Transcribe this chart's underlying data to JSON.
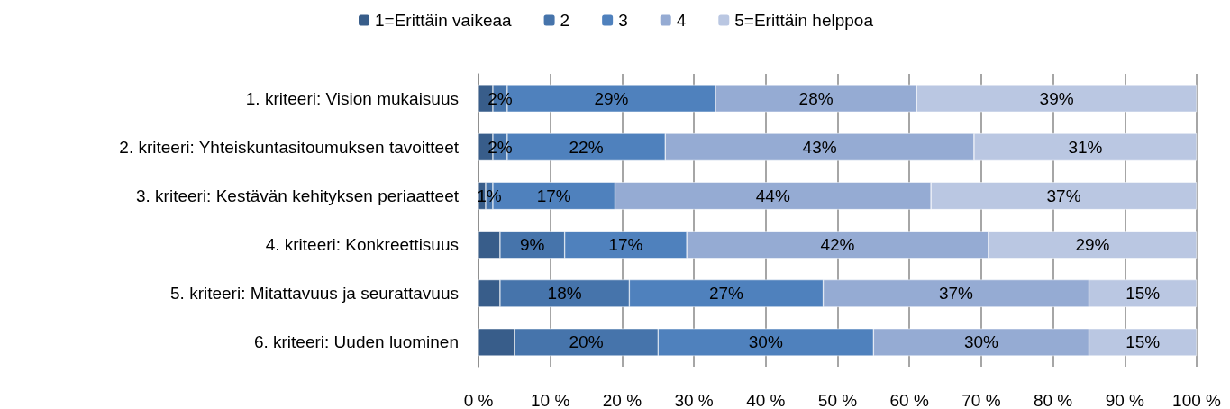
{
  "chart_data": {
    "type": "bar",
    "orientation": "horizontal",
    "stacked": true,
    "categories": [
      "1. kriteeri: Vision mukaisuus",
      "2. kriteeri: Yhteiskuntasitoumuksen tavoitteet",
      "3. kriteeri: Kestävän kehityksen periaatteet",
      "4. kriteeri: Konkreettisuus",
      "5. kriteeri: Mitattavuus ja seurattavuus",
      "6. kriteeri: Uuden luominen"
    ],
    "series": [
      {
        "name": "1=Erittäin vaikeaa",
        "color": "#385d8a",
        "values": [
          2,
          2,
          1,
          3,
          3,
          5
        ],
        "value_labels": [
          null,
          null,
          null,
          null,
          null,
          null
        ]
      },
      {
        "name": "2",
        "color": "#4674ab",
        "values": [
          2,
          2,
          1,
          9,
          18,
          20
        ],
        "value_labels": [
          "2%",
          "2%",
          "1%",
          "9%",
          "18%",
          "20%"
        ]
      },
      {
        "name": "3",
        "color": "#4f81bd",
        "values": [
          29,
          22,
          17,
          17,
          27,
          30
        ],
        "value_labels": [
          "29%",
          "22%",
          "17%",
          "17%",
          "27%",
          "30%"
        ]
      },
      {
        "name": "4",
        "color": "#95abd3",
        "values": [
          28,
          43,
          44,
          42,
          37,
          30
        ],
        "value_labels": [
          "28%",
          "43%",
          "44%",
          "42%",
          "37%",
          "30%"
        ]
      },
      {
        "name": "5=Erittäin helppoa",
        "color": "#bac7e2",
        "values": [
          39,
          31,
          37,
          29,
          15,
          15
        ],
        "value_labels": [
          "39%",
          "31%",
          "37%",
          "29%",
          "15%",
          "15%"
        ]
      }
    ],
    "xlim": [
      0,
      100
    ],
    "xticks": [
      {
        "value": 0,
        "label": "0 %"
      },
      {
        "value": 10,
        "label": "10 %"
      },
      {
        "value": 20,
        "label": "20 %"
      },
      {
        "value": 30,
        "label": "30 %"
      },
      {
        "value": 40,
        "label": "40 %"
      },
      {
        "value": 50,
        "label": "50 %"
      },
      {
        "value": 60,
        "label": "60 %"
      },
      {
        "value": 70,
        "label": "70 %"
      },
      {
        "value": 80,
        "label": "80 %"
      },
      {
        "value": 90,
        "label": "90 %"
      },
      {
        "value": 100,
        "label": "100 %"
      }
    ],
    "grid": "x",
    "legend": "top"
  }
}
